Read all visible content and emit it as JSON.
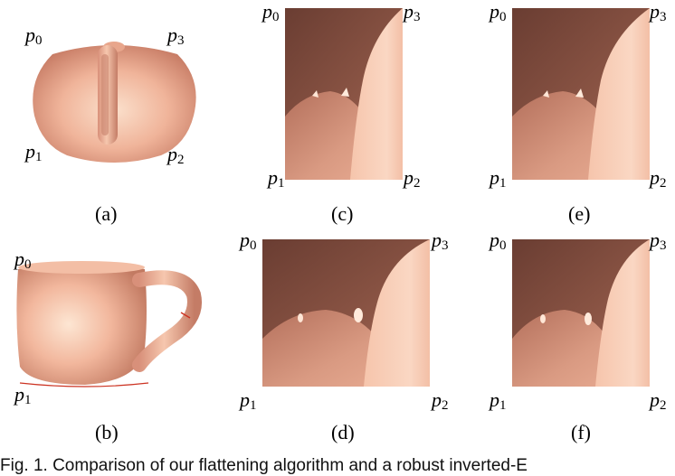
{
  "colors": {
    "surface_light": "#f4c3ac",
    "surface_mid": "#e4a38a",
    "surface_dark": "#6e4034",
    "background": "#ffffff"
  },
  "panels": {
    "a": {
      "caption": "(a)",
      "labels": {
        "p0": {
          "p": "p",
          "n": "0"
        },
        "p1": {
          "p": "p",
          "n": "1"
        },
        "p2": {
          "p": "p",
          "n": "2"
        },
        "p3": {
          "p": "p",
          "n": "3"
        }
      }
    },
    "b": {
      "caption": "(b)",
      "labels": {
        "p0": {
          "p": "p",
          "n": "0"
        },
        "p1": {
          "p": "p",
          "n": "1"
        }
      }
    },
    "c": {
      "caption": "(c)",
      "labels": {
        "p0": {
          "p": "p",
          "n": "0"
        },
        "p1": {
          "p": "p",
          "n": "1"
        },
        "p2": {
          "p": "p",
          "n": "2"
        },
        "p3": {
          "p": "p",
          "n": "3"
        }
      }
    },
    "d": {
      "caption": "(d)",
      "labels": {
        "p0": {
          "p": "p",
          "n": "0"
        },
        "p1": {
          "p": "p",
          "n": "1"
        },
        "p2": {
          "p": "p",
          "n": "2"
        },
        "p3": {
          "p": "p",
          "n": "3"
        }
      }
    },
    "e": {
      "caption": "(e)",
      "labels": {
        "p0": {
          "p": "p",
          "n": "0"
        },
        "p1": {
          "p": "p",
          "n": "1"
        },
        "p2": {
          "p": "p",
          "n": "2"
        },
        "p3": {
          "p": "p",
          "n": "3"
        }
      }
    },
    "f": {
      "caption": "(f)",
      "labels": {
        "p0": {
          "p": "p",
          "n": "0"
        },
        "p1": {
          "p": "p",
          "n": "1"
        },
        "p2": {
          "p": "p",
          "n": "2"
        },
        "p3": {
          "p": "p",
          "n": "3"
        }
      }
    }
  },
  "figure_caption_fragment": "Fig. 1.  Comparison of our flattening algorithm and a robust inverted-E"
}
